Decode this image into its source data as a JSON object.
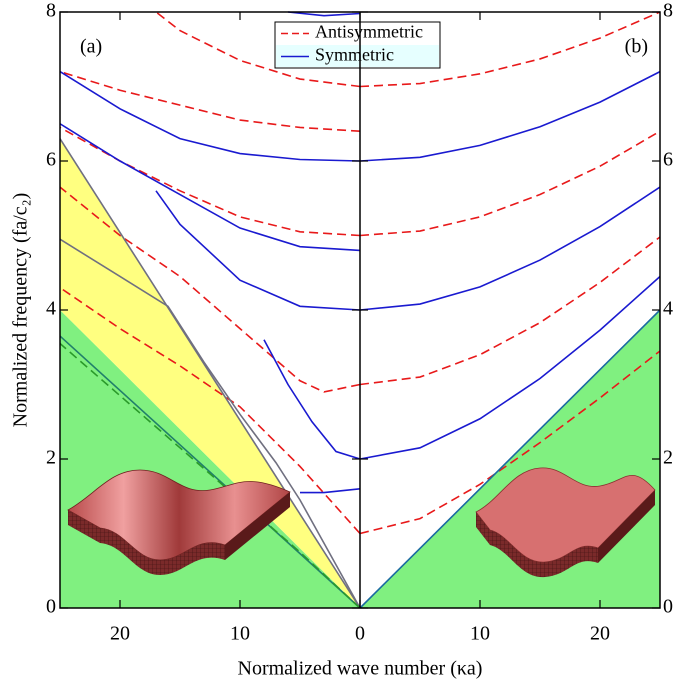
{
  "chart_data": [
    {
      "type": "line",
      "label": "(a)",
      "label_corner": "top-left",
      "xlim": [
        25,
        0
      ],
      "ylim": [
        0,
        8
      ],
      "xticks": [
        20,
        10,
        0
      ],
      "yticks": [
        0,
        2,
        4,
        6,
        8
      ],
      "yaxis_side": "left",
      "xlabel": "Normalized wave number (κa)",
      "ylabel": "Normalized frequency (fa/c₂)",
      "legend": true,
      "legend_loc": "upper center",
      "fills": [
        {
          "color": "#80f080",
          "x": [
            0,
            25
          ],
          "upper": [
            0,
            4
          ],
          "lower": [
            0,
            0
          ]
        },
        {
          "color": "#ffff80",
          "x": [
            0,
            25
          ],
          "upper": [
            0,
            6.3
          ],
          "lower": [
            0,
            4
          ]
        }
      ],
      "series": [
        {
          "name": "Antisymmetric",
          "color": "#e8191a",
          "dash": true,
          "x": [
            0,
            5,
            10,
            15,
            17
          ],
          "values": [
            7.0,
            7.1,
            7.35,
            7.75,
            8.0
          ]
        },
        {
          "name": "Antisymmetric",
          "color": "#e8191a",
          "dash": true,
          "x": [
            0,
            5,
            10,
            15,
            20,
            25
          ],
          "values": [
            6.4,
            6.45,
            6.55,
            6.75,
            6.95,
            7.2
          ]
        },
        {
          "name": "Antisymmetric",
          "color": "#e8191a",
          "dash": true,
          "x": [
            0,
            5,
            10,
            15,
            20,
            25
          ],
          "values": [
            5.0,
            5.05,
            5.25,
            5.6,
            6.0,
            6.45
          ]
        },
        {
          "name": "Antisymmetric",
          "color": "#e8191a",
          "dash": true,
          "x": [
            0,
            3,
            5,
            10,
            15,
            20,
            25
          ],
          "values": [
            3.0,
            2.9,
            3.05,
            3.75,
            4.45,
            5.0,
            5.65
          ]
        },
        {
          "name": "Antisymmetric",
          "color": "#e8191a",
          "dash": true,
          "x": [
            0,
            5,
            10,
            15,
            20,
            25
          ],
          "values": [
            1.0,
            1.9,
            2.7,
            3.25,
            3.75,
            4.3
          ]
        },
        {
          "name": "Symmetric",
          "color": "#1a1ad0",
          "dash": false,
          "x": [
            0,
            3,
            6
          ],
          "values": [
            7.98,
            7.95,
            8.0
          ]
        },
        {
          "name": "Symmetric",
          "color": "#1a1ad0",
          "dash": false,
          "x": [
            0,
            5,
            10,
            15,
            20,
            25
          ],
          "values": [
            6.0,
            6.02,
            6.1,
            6.3,
            6.7,
            7.2
          ]
        },
        {
          "name": "Symmetric",
          "color": "#1a1ad0",
          "dash": false,
          "x": [
            0,
            5,
            10,
            15,
            20,
            25
          ],
          "values": [
            4.8,
            4.85,
            5.1,
            5.55,
            6.0,
            6.5
          ]
        },
        {
          "name": "Symmetric",
          "color": "#1a1ad0",
          "dash": false,
          "x": [
            0,
            5,
            10,
            15,
            17
          ],
          "values": [
            4.0,
            4.05,
            4.4,
            5.15,
            5.6
          ]
        },
        {
          "name": "Symmetric",
          "color": "#1a1ad0",
          "dash": false,
          "x": [
            0,
            2,
            4,
            6,
            8
          ],
          "values": [
            2.0,
            2.1,
            2.5,
            3.0,
            3.6
          ]
        },
        {
          "name": "Symmetric",
          "color": "#1a1ad0",
          "dash": false,
          "x": [
            0,
            3,
            5
          ],
          "values": [
            1.6,
            1.55,
            1.55
          ]
        },
        {
          "color": "#707080",
          "dash": false,
          "x": [
            0,
            25
          ],
          "values": [
            0,
            6.3
          ]
        },
        {
          "color": "#707080",
          "dash": false,
          "x": [
            0,
            5,
            7,
            10,
            13,
            16,
            20,
            25
          ],
          "values": [
            0,
            1.45,
            1.95,
            2.6,
            3.3,
            4.05,
            4.45,
            4.95
          ]
        },
        {
          "color": "#20806a",
          "dash": false,
          "x": [
            0,
            25
          ],
          "values": [
            0,
            3.65
          ]
        },
        {
          "color": "#2a9a2a",
          "dash": true,
          "x": [
            0,
            5,
            10,
            15,
            20,
            25
          ],
          "values": [
            0,
            0.75,
            1.45,
            2.15,
            2.85,
            3.55
          ]
        }
      ]
    },
    {
      "type": "line",
      "label": "(b)",
      "label_corner": "top-right",
      "xlim": [
        0,
        25
      ],
      "ylim": [
        0,
        8
      ],
      "xticks": [
        10,
        20
      ],
      "yticks": [
        0,
        2,
        4,
        6,
        8
      ],
      "yaxis_side": "right",
      "legend": false,
      "fills": [
        {
          "color": "#80f080",
          "x": [
            0,
            25
          ],
          "upper": [
            0,
            4
          ],
          "lower": [
            0,
            0
          ]
        }
      ],
      "series": [
        {
          "name": "Antisymmetric",
          "color": "#e8191a",
          "dash": true,
          "x": [
            0,
            5,
            10,
            15,
            20,
            25
          ],
          "values": [
            1.0,
            1.2,
            1.66,
            2.22,
            2.82,
            3.45
          ]
        },
        {
          "name": "Antisymmetric",
          "color": "#e8191a",
          "dash": true,
          "x": [
            0,
            5,
            10,
            15,
            20,
            25
          ],
          "values": [
            3.0,
            3.1,
            3.4,
            3.83,
            4.37,
            4.98
          ]
        },
        {
          "name": "Antisymmetric",
          "color": "#e8191a",
          "dash": true,
          "x": [
            0,
            5,
            10,
            15,
            20,
            25
          ],
          "values": [
            5.0,
            5.06,
            5.25,
            5.55,
            5.93,
            6.4
          ]
        },
        {
          "name": "Antisymmetric",
          "color": "#e8191a",
          "dash": true,
          "x": [
            0,
            5,
            10,
            15,
            20,
            25
          ],
          "values": [
            7.0,
            7.04,
            7.17,
            7.37,
            7.65,
            8.0
          ]
        },
        {
          "name": "Symmetric",
          "color": "#1a1ad0",
          "dash": false,
          "x": [
            0,
            5,
            10,
            15,
            20,
            25
          ],
          "values": [
            2.0,
            2.15,
            2.54,
            3.08,
            3.73,
            4.45
          ]
        },
        {
          "name": "Symmetric",
          "color": "#1a1ad0",
          "dash": false,
          "x": [
            0,
            5,
            10,
            15,
            20,
            25
          ],
          "values": [
            4.0,
            4.08,
            4.31,
            4.67,
            5.12,
            5.65
          ]
        },
        {
          "name": "Symmetric",
          "color": "#1a1ad0",
          "dash": false,
          "x": [
            0,
            5,
            10,
            15,
            20,
            25
          ],
          "values": [
            6.0,
            6.05,
            6.21,
            6.46,
            6.79,
            7.2
          ]
        },
        {
          "color": "#1a6aa0",
          "dash": false,
          "x": [
            0,
            25
          ],
          "values": [
            0,
            4
          ]
        }
      ]
    }
  ]
}
